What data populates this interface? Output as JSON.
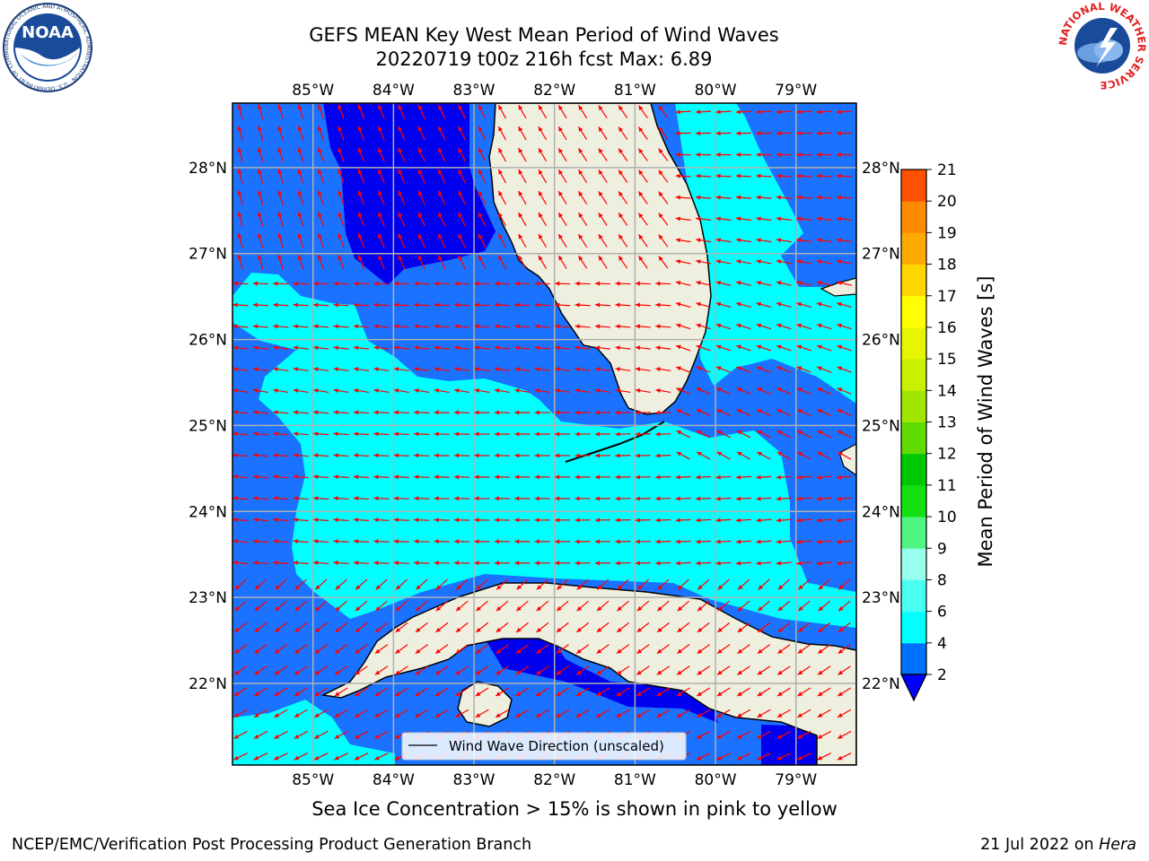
{
  "title": {
    "line1": "GEFS MEAN Key West Mean Period of Wind Waves",
    "line2": "20220719 t00z 216h fcst   Max: 6.89"
  },
  "subtitle": "Sea Ice Concentration > 15% is shown in pink to yellow",
  "footer": {
    "left": "NCEP/EMC/Verification Post Processing Product Generation Branch",
    "date": "21 Jul 2022 on ",
    "host": "Hera"
  },
  "logos": {
    "noaa_text": "NOAA",
    "noaa_ring": "NATIONAL OCEANIC AND ATMOSPHERIC ADMINISTRATION · U.S. DEPARTMENT OF COMMERCE",
    "nws_ring": "NATIONAL WEATHER SERVICE"
  },
  "axes": {
    "lon_labels": [
      "85°W",
      "84°W",
      "83°W",
      "82°W",
      "81°W",
      "80°W",
      "79°W"
    ],
    "lon_values": [
      -85,
      -84,
      -83,
      -82,
      -81,
      -80,
      -79
    ],
    "lat_labels": [
      "28°N",
      "27°N",
      "26°N",
      "25°N",
      "24°N",
      "23°N",
      "22°N"
    ],
    "lat_values": [
      28,
      27,
      26,
      25,
      24,
      23,
      22
    ],
    "lon_range": [
      -86.0,
      -78.25
    ],
    "lat_range": [
      21.05,
      28.75
    ],
    "grid": true
  },
  "legend": {
    "label": "Wind Wave Direction (unscaled)",
    "placement": "bottom-center"
  },
  "colorbar": {
    "label": "Mean Period of Wind Waves [s]",
    "ticks": [
      "2",
      "4",
      "6",
      "8",
      "9",
      "10",
      "11",
      "12",
      "13",
      "14",
      "15",
      "16",
      "17",
      "18",
      "19",
      "20",
      "21"
    ],
    "levels": [
      2,
      4,
      6,
      8,
      9,
      10,
      11,
      12,
      13,
      14,
      15,
      16,
      17,
      18,
      19,
      20,
      21
    ],
    "colors": [
      "#0070ff",
      "#00ffff",
      "#48fff0",
      "#98ffee",
      "#50f582",
      "#14e014",
      "#00c800",
      "#60dc00",
      "#a0e600",
      "#c8f000",
      "#e8f500",
      "#ffff00",
      "#ffd700",
      "#ffaa00",
      "#ff8c00",
      "#ff5000",
      "#ff2a00",
      "#ff0000"
    ],
    "under_color": "#0000ff",
    "extend": "min"
  },
  "colors": {
    "land": "#efefdf",
    "deep": "#0000ee",
    "mid": "#1a72ff",
    "shallow": "#00ffff",
    "arrows": "#ff0000",
    "coast": "#000000",
    "grid": "#b0b0b0"
  }
}
